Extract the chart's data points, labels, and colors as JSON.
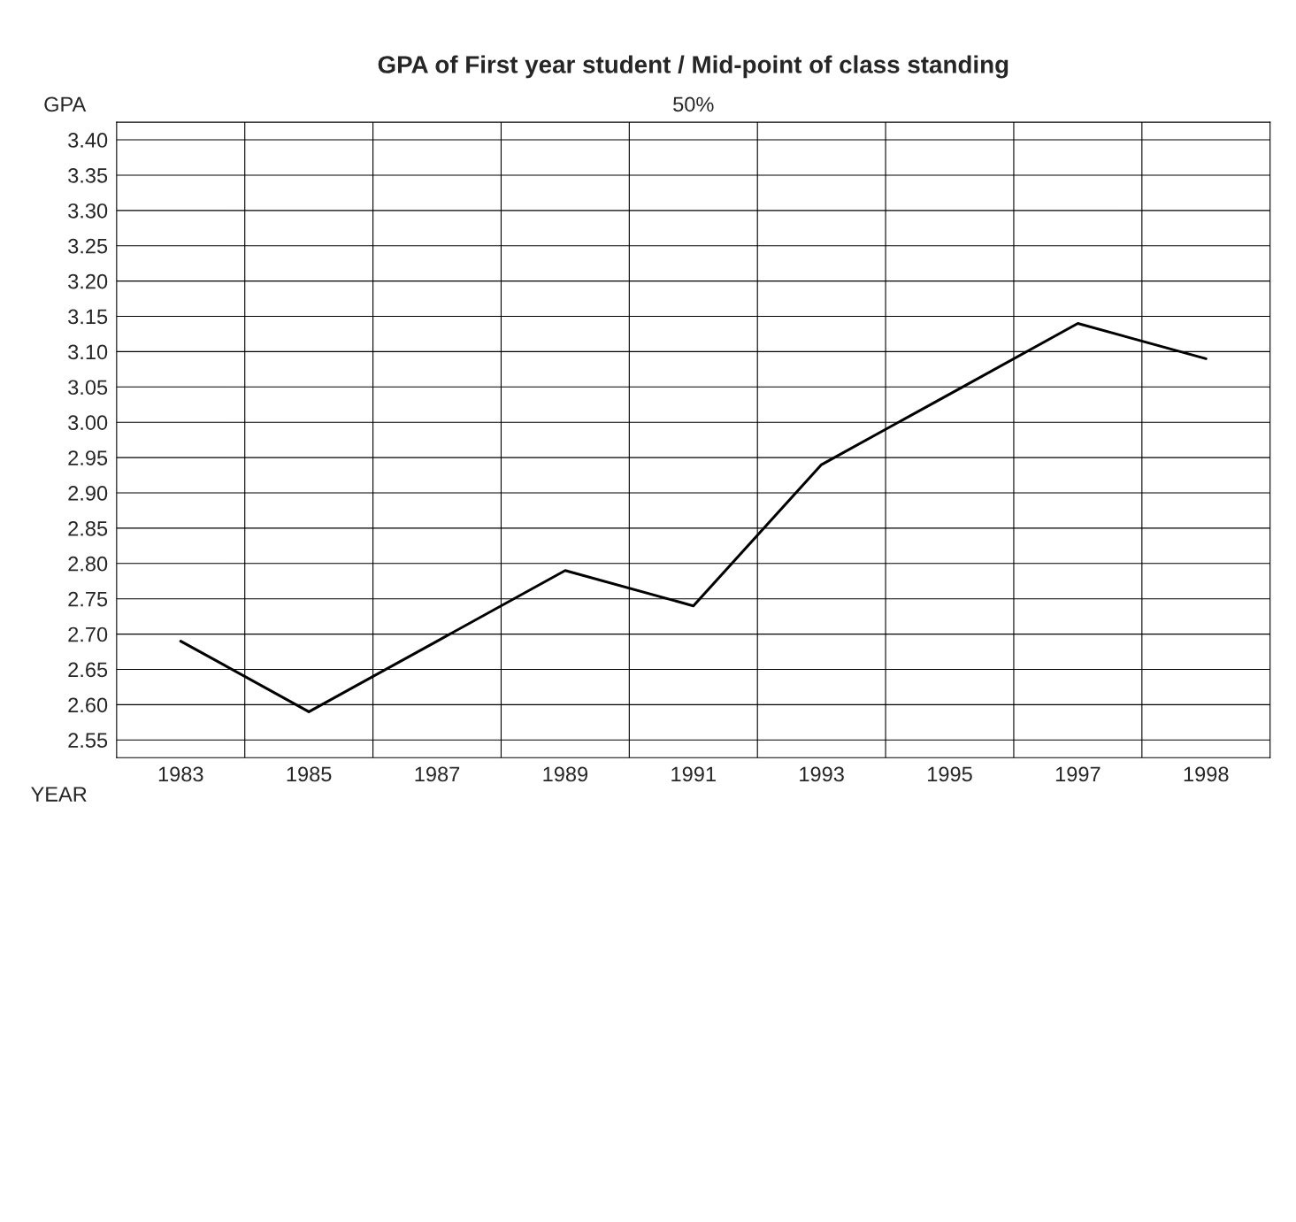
{
  "chart_data": {
    "type": "line",
    "title": "GPA of First year student / Mid-point of class standing",
    "subtitle": "50%",
    "xlabel": "YEAR",
    "ylabel": "GPA",
    "categories": [
      "1983",
      "1985",
      "1987",
      "1989",
      "1991",
      "1993",
      "1995",
      "1997",
      "1998"
    ],
    "series": [
      {
        "color": "#000000",
        "values": [
          2.69,
          2.59,
          2.69,
          2.79,
          2.74,
          2.94,
          3.04,
          3.14,
          3.09
        ]
      }
    ],
    "ylim": [
      2.525,
      3.425
    ],
    "yticks": [
      2.55,
      {
        "value": 2.6,
        "label": "2.60"
      },
      2.65,
      {
        "value": 2.7,
        "label": "2.70"
      },
      2.75,
      {
        "value": 2.8,
        "label": "2.80"
      },
      2.85,
      {
        "value": 2.9,
        "label": "2.90"
      },
      2.95,
      {
        "value": 3.0,
        "label": "3.00"
      },
      3.05,
      {
        "value": 3.1,
        "label": "3.10"
      },
      3.15,
      {
        "value": 3.2,
        "label": "3.20"
      },
      3.25,
      {
        "value": 3.3,
        "label": "3.30"
      },
      3.35,
      {
        "value": 3.4,
        "label": "3.40"
      }
    ],
    "grid": true,
    "marker": "none",
    "line_style": "solid",
    "legend": false
  }
}
